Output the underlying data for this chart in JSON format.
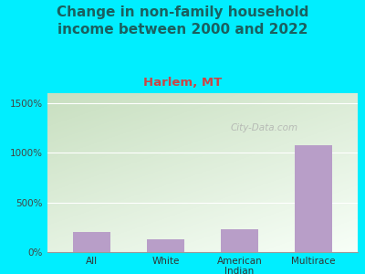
{
  "title": "Change in non-family household\nincome between 2000 and 2022",
  "subtitle": "Harlem, MT",
  "categories": [
    "All",
    "White",
    "American\nIndian",
    "Multirace"
  ],
  "values": [
    200,
    130,
    230,
    1080
  ],
  "bar_color": "#b89ec8",
  "title_color": "#1a6060",
  "subtitle_color": "#cc4444",
  "background_color": "#00eeff",
  "plot_bg_color_top_left": "#c8dfc0",
  "plot_bg_color_bottom_right": "#f8fff8",
  "ylabel_ticks": [
    0,
    500,
    1000,
    1500
  ],
  "ylabel_labels": [
    "0%",
    "500%",
    "1000%",
    "1500%"
  ],
  "ylim": [
    0,
    1600
  ],
  "watermark": "City-Data.com",
  "title_fontsize": 11,
  "subtitle_fontsize": 9.5
}
